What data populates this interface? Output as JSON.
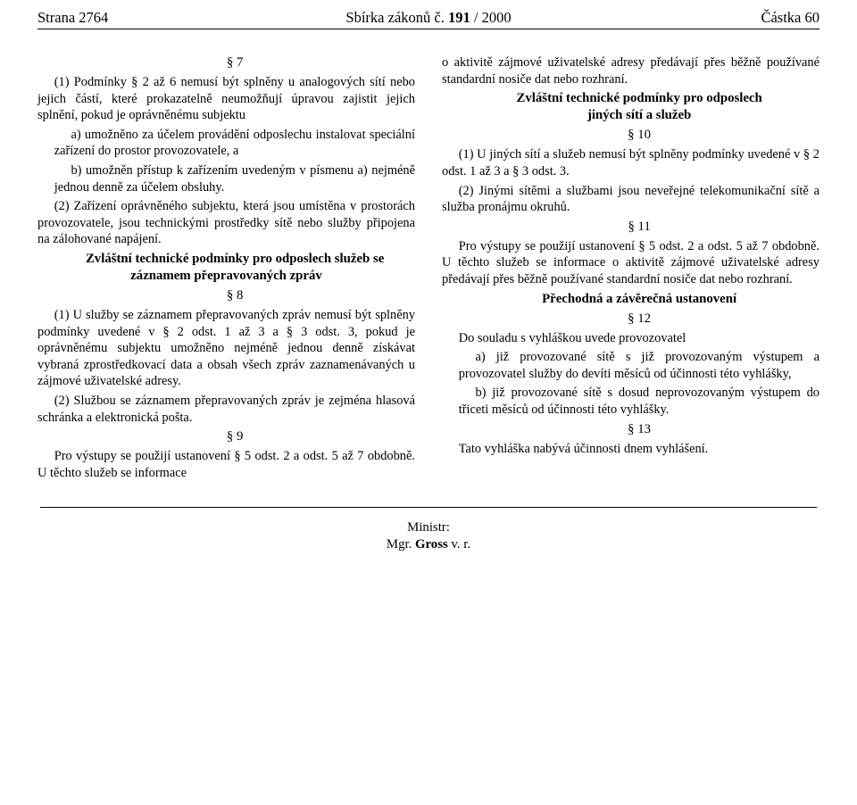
{
  "header": {
    "left": "Strana 2764",
    "center_prefix": "Sbírka zákonů č. ",
    "center_bold": "191",
    "center_suffix": " / 2000",
    "right": "Částka 60"
  },
  "left_col": {
    "s7_num": "§ 7",
    "s7_p1": "(1) Podmínky § 2 až 6 nemusí být splněny u analogových sítí nebo jejich částí, které prokazatelně neumožňují úpravou zajistit jejich splnění, pokud je oprávněnému subjektu",
    "s7_a": "a) umožněno za účelem provádění odposlechu instalovat speciální zařízení do prostor provozovatele, a",
    "s7_b": "b) umožněn přístup k zařízením uvedeným v písmenu a) nejméně jednou denně za účelem obsluhy.",
    "s7_p2": "(2) Zařízení oprávněného subjektu, která jsou umístěna v prostorách provozovatele, jsou technickými prostředky sítě nebo služby připojena na zálohované napájení.",
    "h2_title": "Zvláštní technické podmínky pro odposlech služeb se záznamem přepravovaných zpráv",
    "s8_num": "§ 8",
    "s8_p1": "(1) U služby se záznamem přepravovaných zpráv nemusí být splněny podmínky uvedené v § 2 odst. 1 až 3 a § 3 odst. 3, pokud je oprávněnému subjektu umožněno nejméně jednou denně získávat vybraná zprostředkovací data a obsah všech zpráv zaznamenávaných u zájmové uživatelské adresy.",
    "s8_p2": "(2) Službou se záznamem přepravovaných zpráv je zejména hlasová schránka a elektronická pošta.",
    "s9_num": "§ 9",
    "s9_p": "Pro výstupy se použijí ustanovení § 5 odst. 2 a odst. 5 až 7 obdobně. U těchto služeb se informace"
  },
  "right_col": {
    "cont": "o aktivitě zájmové uživatelské adresy předávají přes běžně používané standardní nosiče dat nebo rozhraní.",
    "h3_title1": "Zvláštní technické podmínky pro odposlech",
    "h3_title2": "jiných sítí a služeb",
    "s10_num": "§ 10",
    "s10_p1": "(1) U jiných sítí a služeb nemusí být splněny podmínky uvedené v § 2 odst. 1 až 3 a § 3 odst. 3.",
    "s10_p2": "(2) Jinými sítěmi a službami jsou neveřejné telekomunikační sítě a služba pronájmu okruhů.",
    "s11_num": "§ 11",
    "s11_p": "Pro výstupy se použijí ustanovení § 5 odst. 2 a odst. 5 až 7 obdobně. U těchto služeb se informace o aktivitě zájmové uživatelské adresy předávají přes běžně používané standardní nosiče dat nebo rozhraní.",
    "h4_title": "Přechodná a závěrečná ustanovení",
    "s12_num": "§ 12",
    "s12_intro": "Do souladu s vyhláškou uvede provozovatel",
    "s12_a": "a) již provozované sítě s již provozovaným výstupem a provozovatel služby do devíti měsíců od účinnosti této vyhlášky,",
    "s12_b": "b) již provozované sítě s dosud neprovozovaným výstupem do třiceti měsíců od účinnosti této vyhlášky.",
    "s13_num": "§ 13",
    "s13_p": "Tato vyhláška nabývá účinnosti dnem vyhlášení."
  },
  "footer": {
    "label": "Ministr:",
    "name_prefix": "Mgr. ",
    "name_bold": "Gross ",
    "name_suffix": "v. r."
  }
}
